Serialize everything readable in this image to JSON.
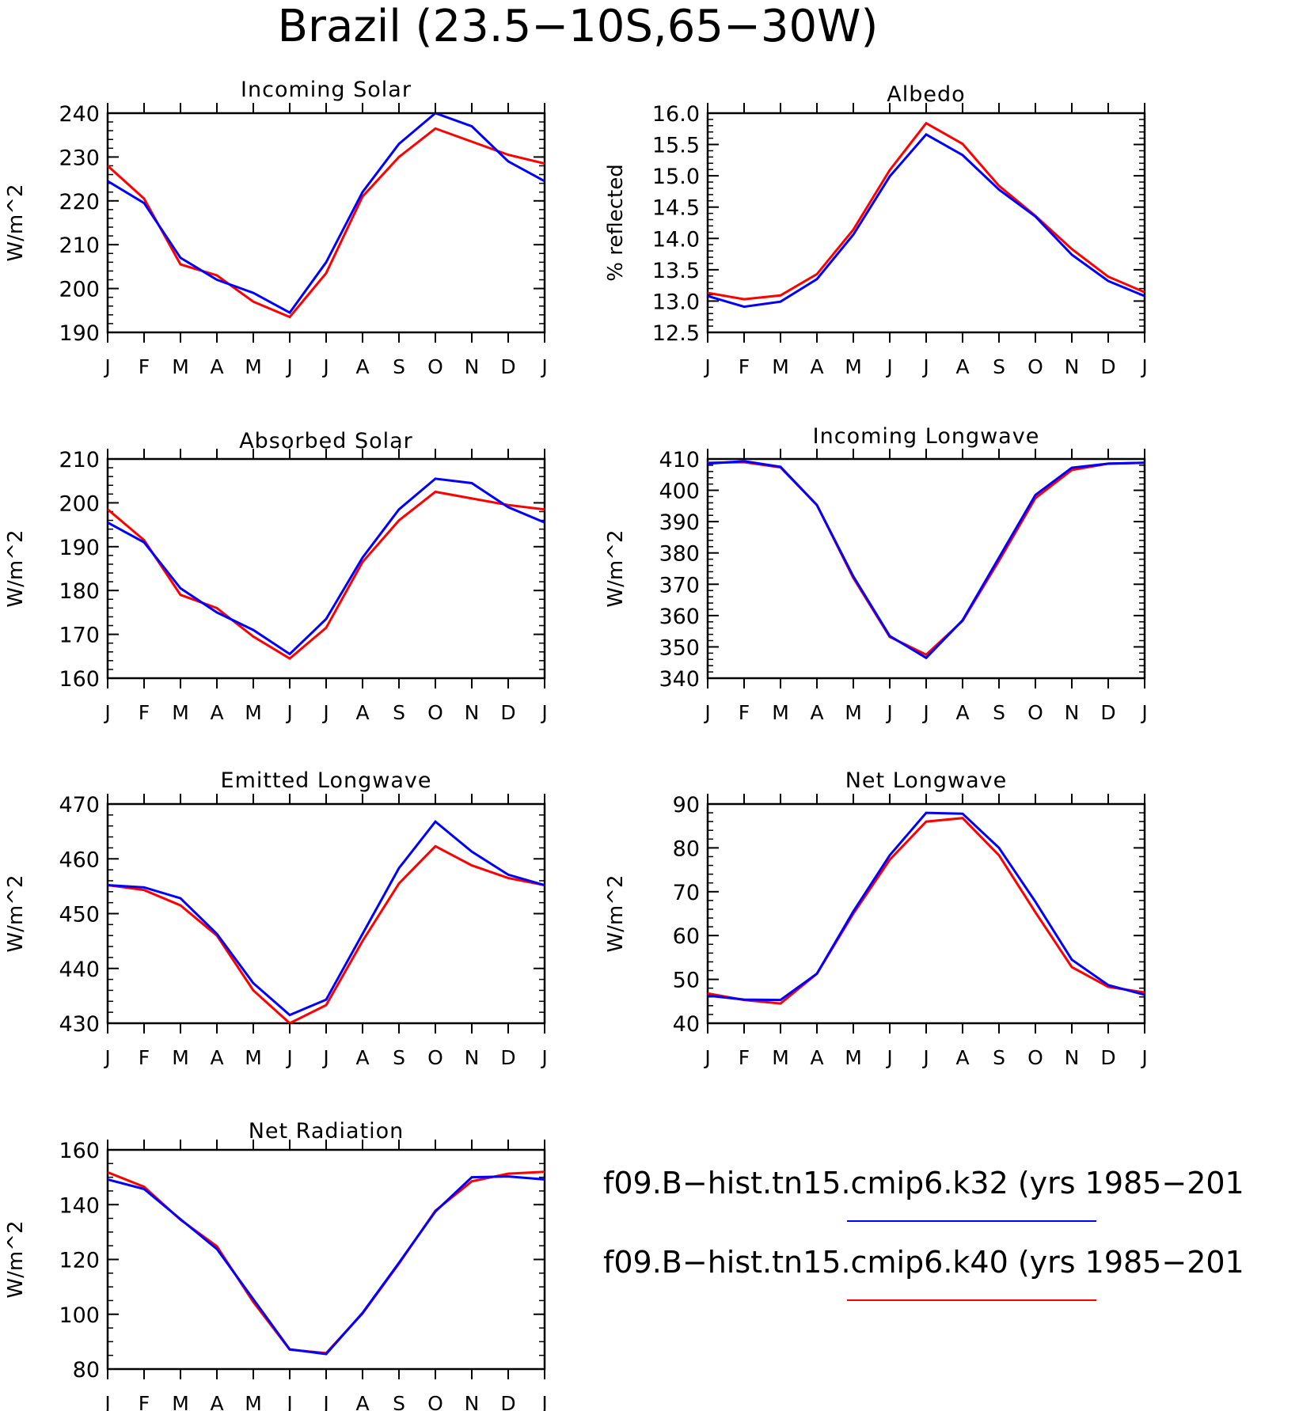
{
  "title": "Brazil (23.5−10S,65−30W)",
  "legend": {
    "entries": [
      {
        "label": "f09.B−hist.tn15.cmip6.k32 (yrs 1985−201",
        "color": "#0000ff"
      },
      {
        "label": "f09.B−hist.tn15.cmip6.k40 (yrs 1985−201",
        "color": "#ff0000"
      }
    ]
  },
  "chart_data": [
    {
      "type": "line",
      "title": "Incoming Solar",
      "ylabel": "W/m^2",
      "categories": [
        "J",
        "F",
        "M",
        "A",
        "M",
        "J",
        "J",
        "A",
        "S",
        "O",
        "N",
        "D",
        "J"
      ],
      "ylim": [
        190,
        240
      ],
      "yticks": [
        "240",
        "230",
        "220",
        "210",
        "200",
        "190"
      ],
      "series": [
        {
          "color": "#0000ff",
          "values": [
            224.5,
            219.5,
            207,
            202,
            199,
            194.5,
            206,
            222,
            233,
            240,
            237,
            229,
            224.5
          ]
        },
        {
          "color": "#ff0000",
          "values": [
            228,
            220.5,
            205.5,
            203,
            197,
            193.5,
            203.5,
            221,
            230,
            236.5,
            233.5,
            230.5,
            228.5
          ]
        }
      ]
    },
    {
      "type": "line",
      "title": "Albedo",
      "ylabel": "% reflected",
      "categories": [
        "J",
        "F",
        "M",
        "A",
        "M",
        "J",
        "J",
        "A",
        "S",
        "O",
        "N",
        "D",
        "J"
      ],
      "ylim": [
        12.5,
        16.0
      ],
      "yticks": [
        "16.0",
        "15.5",
        "15.0",
        "14.5",
        "14.0",
        "13.5",
        "13.0",
        "12.5"
      ],
      "series": [
        {
          "color": "#0000ff",
          "values": [
            13.08,
            12.91,
            12.99,
            13.35,
            14.06,
            14.99,
            15.66,
            15.33,
            14.78,
            14.35,
            13.74,
            13.32,
            13.08
          ]
        },
        {
          "color": "#ff0000",
          "values": [
            13.13,
            13.03,
            13.09,
            13.43,
            14.14,
            15.09,
            15.84,
            15.51,
            14.84,
            14.36,
            13.83,
            13.39,
            13.14
          ]
        }
      ]
    },
    {
      "type": "line",
      "title": "Absorbed Solar",
      "ylabel": "W/m^2",
      "categories": [
        "J",
        "F",
        "M",
        "A",
        "M",
        "J",
        "J",
        "A",
        "S",
        "O",
        "N",
        "D",
        "J"
      ],
      "ylim": [
        160,
        210
      ],
      "yticks": [
        "210",
        "200",
        "190",
        "180",
        "170",
        "160"
      ],
      "series": [
        {
          "color": "#0000ff",
          "values": [
            195.5,
            191,
            180.5,
            175,
            171,
            165.5,
            173.5,
            187.5,
            198.5,
            205.5,
            204.5,
            199,
            195.5
          ]
        },
        {
          "color": "#ff0000",
          "values": [
            198.5,
            191.5,
            179,
            176,
            169.5,
            164.5,
            171.5,
            186.5,
            196,
            202.5,
            201,
            199.5,
            198.5
          ]
        }
      ]
    },
    {
      "type": "line",
      "title": "Incoming Longwave",
      "ylabel": "W/m^2",
      "categories": [
        "J",
        "F",
        "M",
        "A",
        "M",
        "J",
        "J",
        "A",
        "S",
        "O",
        "N",
        "D",
        "J"
      ],
      "ylim": [
        340,
        410
      ],
      "yticks": [
        "410",
        "400",
        "390",
        "380",
        "370",
        "360",
        "350",
        "340"
      ],
      "series": [
        {
          "color": "#0000ff",
          "values": [
            408.5,
            409.3,
            407.5,
            395.3,
            372.5,
            353.5,
            346.5,
            358.5,
            378.5,
            398.5,
            407.2,
            408.5,
            408.8
          ]
        },
        {
          "color": "#ff0000",
          "values": [
            408.8,
            409.0,
            407.3,
            395.3,
            372.0,
            353.2,
            347.5,
            358.3,
            377.5,
            397.5,
            406.5,
            408.5,
            408.8
          ]
        }
      ]
    },
    {
      "type": "line",
      "title": "Emitted Longwave",
      "ylabel": "W/m^2",
      "categories": [
        "J",
        "F",
        "M",
        "A",
        "M",
        "J",
        "J",
        "A",
        "S",
        "O",
        "N",
        "D",
        "J"
      ],
      "ylim": [
        430,
        470
      ],
      "yticks": [
        "470",
        "460",
        "450",
        "440",
        "430"
      ],
      "series": [
        {
          "color": "#0000ff",
          "values": [
            455.2,
            454.8,
            452.8,
            446.3,
            437.3,
            431.5,
            434.3,
            446.3,
            458.3,
            466.8,
            461.3,
            457.1,
            455.2
          ]
        },
        {
          "color": "#ff0000",
          "values": [
            455.2,
            454.3,
            451.5,
            446.0,
            436.0,
            430.0,
            433.3,
            445.0,
            455.5,
            462.3,
            458.8,
            456.5,
            455.2
          ]
        }
      ]
    },
    {
      "type": "line",
      "title": "Net Longwave",
      "ylabel": "W/m^2",
      "categories": [
        "J",
        "F",
        "M",
        "A",
        "M",
        "J",
        "J",
        "A",
        "S",
        "O",
        "N",
        "D",
        "J"
      ],
      "ylim": [
        40,
        90
      ],
      "yticks": [
        "90",
        "80",
        "70",
        "60",
        "50",
        "40"
      ],
      "series": [
        {
          "color": "#0000ff",
          "values": [
            46.3,
            45.4,
            45.3,
            51.3,
            65.5,
            78.3,
            88,
            87.8,
            80,
            67.7,
            54.5,
            48.7,
            46.5
          ]
        },
        {
          "color": "#ff0000",
          "values": [
            46.8,
            45.3,
            44.5,
            51.3,
            65,
            77.3,
            86,
            86.8,
            78.3,
            65.3,
            52.8,
            48.3,
            47
          ]
        }
      ]
    },
    {
      "type": "line",
      "title": "Net Radiation",
      "ylabel": "W/m^2",
      "categories": [
        "J",
        "F",
        "M",
        "A",
        "M",
        "J",
        "J",
        "A",
        "S",
        "O",
        "N",
        "D",
        "J"
      ],
      "ylim": [
        80,
        160
      ],
      "yticks": [
        "160",
        "140",
        "120",
        "100",
        "80"
      ],
      "series": [
        {
          "color": "#0000ff",
          "values": [
            149.2,
            145.7,
            134.7,
            123.8,
            105.5,
            87.2,
            85.5,
            100.5,
            118.8,
            137.5,
            150,
            150.3,
            149.2
          ]
        },
        {
          "color": "#ff0000",
          "values": [
            151.8,
            146.5,
            134.5,
            124.8,
            104.5,
            87.1,
            85.8,
            100.3,
            118.5,
            137.8,
            148.5,
            151.3,
            152
          ]
        }
      ]
    }
  ]
}
